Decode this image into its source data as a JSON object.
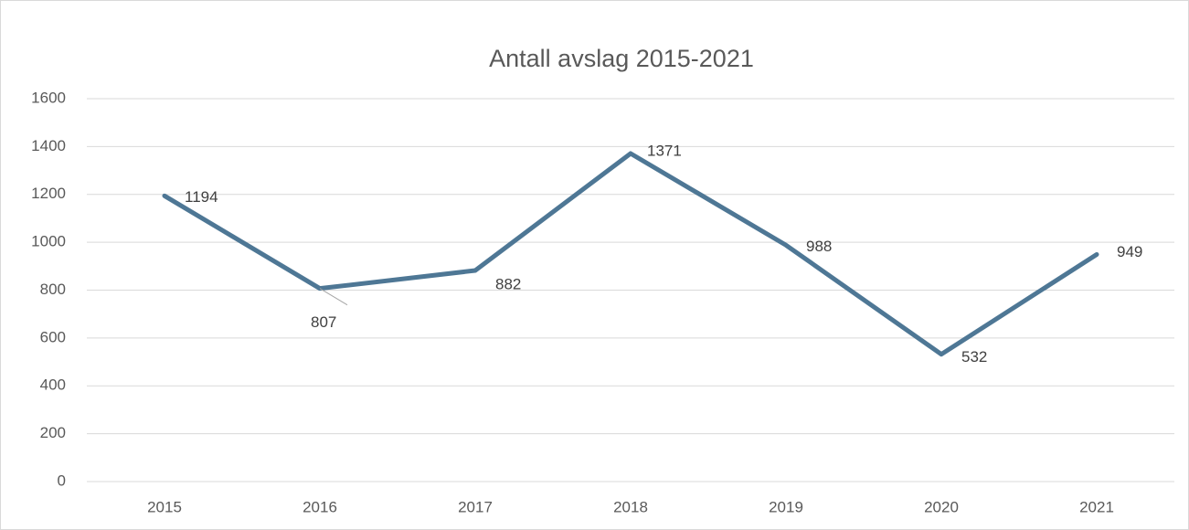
{
  "chart_data": {
    "type": "line",
    "title": "Antall avslag 2015-2021",
    "categories": [
      "2015",
      "2016",
      "2017",
      "2018",
      "2019",
      "2020",
      "2021"
    ],
    "series": [
      {
        "name": "Antall avslag",
        "color": "#4e7795",
        "values": [
          1194,
          807,
          882,
          1371,
          988,
          532,
          949
        ]
      }
    ],
    "ylim": [
      0,
      1600
    ],
    "yticks": [
      0,
      200,
      400,
      600,
      800,
      1000,
      1200,
      1400,
      1600
    ],
    "grid": true
  }
}
